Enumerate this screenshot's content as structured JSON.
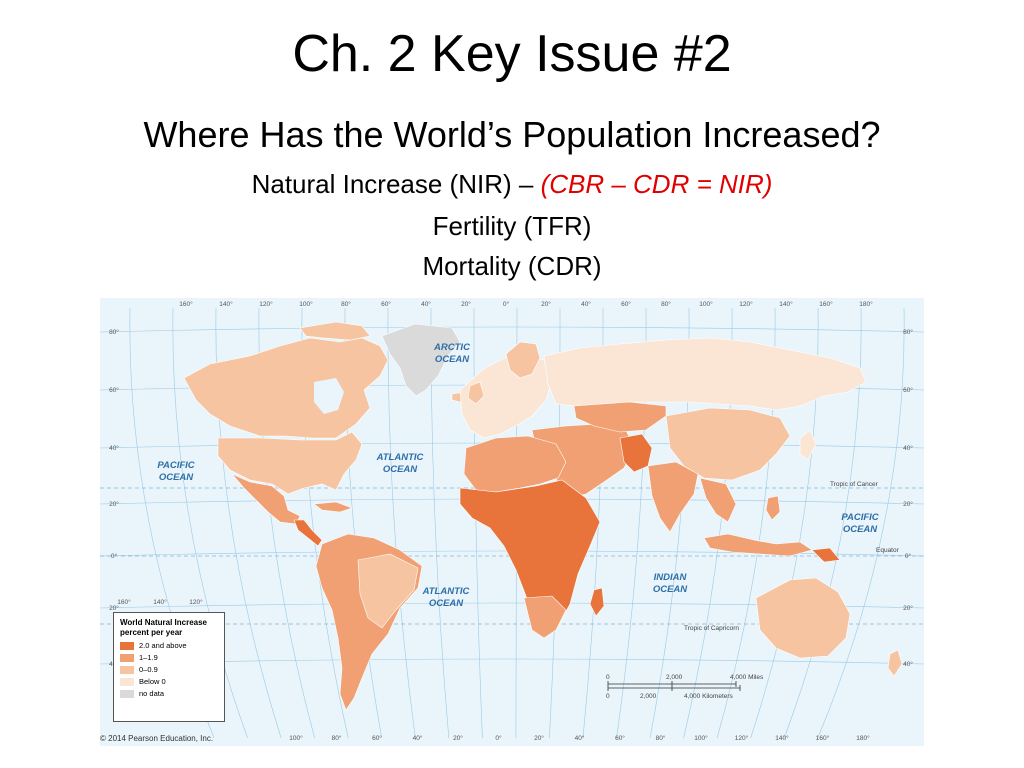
{
  "slide": {
    "title": "Ch. 2 Key Issue #2",
    "subtitle": "Where Has the World’s Population Increased?",
    "line1_prefix": "Natural Increase (NIR) – ",
    "line1_formula": "(CBR – CDR = NIR)",
    "line2": "Fertility (TFR)",
    "line3": "Mortality (CDR)"
  },
  "map": {
    "oceans": {
      "arctic_line1": "ARCTIC",
      "arctic_line2": "OCEAN",
      "pacific_w_line1": "PACIFIC",
      "pacific_w_line2": "OCEAN",
      "atlantic_n_line1": "ATLANTIC",
      "atlantic_n_line2": "OCEAN",
      "atlantic_s_line1": "ATLANTIC",
      "atlantic_s_line2": "OCEAN",
      "indian_line1": "INDIAN",
      "indian_line2": "OCEAN",
      "pacific_e_line1": "PACIFIC",
      "pacific_e_line2": "OCEAN"
    },
    "lines": {
      "tropic_cancer": "Tropic of Cancer",
      "equator": "Equator",
      "tropic_capricorn": "Tropic of Capricorn"
    },
    "top_longitudes": [
      "160°",
      "140°",
      "120°",
      "100°",
      "80°",
      "60°",
      "40°",
      "20°",
      "0°",
      "20°",
      "40°",
      "60°",
      "80°",
      "100°",
      "120°",
      "140°",
      "160°",
      "180°"
    ],
    "bottom_longitudes": [
      "100°",
      "80°",
      "60°",
      "40°",
      "20°",
      "0°",
      "20°",
      "40°",
      "60°",
      "80°",
      "100°",
      "120°",
      "140°",
      "160°",
      "180°"
    ],
    "sw_longitudes": [
      "160°",
      "140°",
      "120°"
    ],
    "left_latitudes": [
      "80°",
      "60°",
      "40°",
      "20°",
      "0°",
      "20°",
      "40°"
    ],
    "right_latitudes": [
      "80°",
      "60°",
      "40°",
      "20°",
      "0°",
      "20°",
      "40°"
    ],
    "scale": {
      "miles_0": "0",
      "miles_2000": "2,000",
      "miles_4000": "4,000 Miles",
      "km_0": "0",
      "km_2000": "2,000",
      "km_4000": "4,000 Kilometers"
    }
  },
  "legend": {
    "title_line1": "World Natural Increase",
    "title_line2": "percent per year",
    "items": [
      {
        "label": "2.0 and above",
        "color": "#e8743b"
      },
      {
        "label": "1–1.9",
        "color": "#f0a073"
      },
      {
        "label": "0–0.9",
        "color": "#f6c4a0"
      },
      {
        "label": "Below 0",
        "color": "#fbe6d6"
      },
      {
        "label": "no data",
        "color": "#dadada"
      }
    ]
  },
  "colors": {
    "ocean": "#e9f4fb",
    "graticule": "#9ccbe6",
    "formula": "#e00000",
    "ocean_text": "#2e6ea8"
  },
  "copyright": "© 2014 Pearson Education, Inc."
}
